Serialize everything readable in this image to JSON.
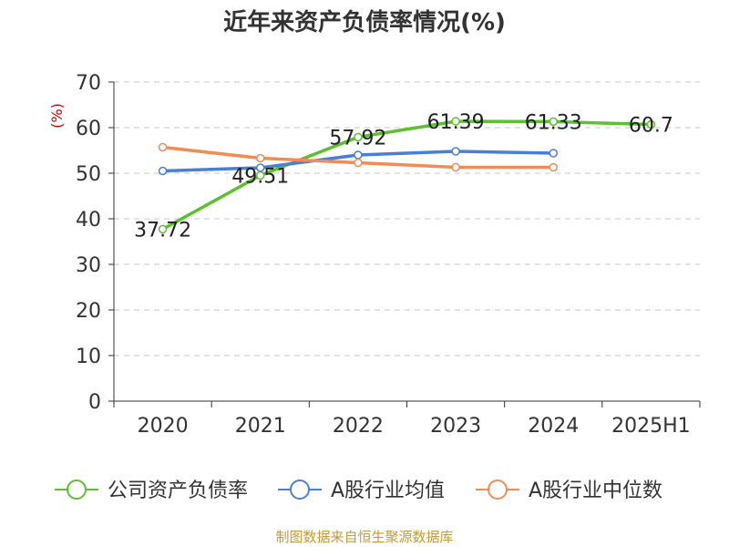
{
  "title": "近年来资产负债率情况(%)",
  "source": "制图数据来自恒生聚源数据库",
  "chart_data": {
    "type": "line",
    "title": "近年来资产负债率情况(%)",
    "ylabel": "(%)",
    "xlabel": "",
    "categories": [
      "2020",
      "2021",
      "2022",
      "2023",
      "2024",
      "2025H1"
    ],
    "ylim": [
      0,
      70
    ],
    "yticks": [
      0,
      10,
      20,
      30,
      40,
      50,
      60,
      70
    ],
    "grid": true,
    "legend_position": "bottom",
    "series": [
      {
        "name": "公司资产负债率",
        "color": "#5cc12f",
        "values": [
          37.72,
          49.51,
          57.92,
          61.39,
          61.33,
          60.7
        ],
        "labels": [
          "37.72",
          "49.51",
          "57.92",
          "61.39",
          "61.33",
          "60.7"
        ],
        "show_labels": true
      },
      {
        "name": "A股行业均值",
        "color": "#4a7fd6",
        "values": [
          50.5,
          51.2,
          54.0,
          54.8,
          54.4,
          null
        ],
        "show_labels": false
      },
      {
        "name": "A股行业中位数",
        "color": "#f28c55",
        "values": [
          55.7,
          53.3,
          52.3,
          51.3,
          51.3,
          null
        ],
        "show_labels": false
      }
    ]
  }
}
